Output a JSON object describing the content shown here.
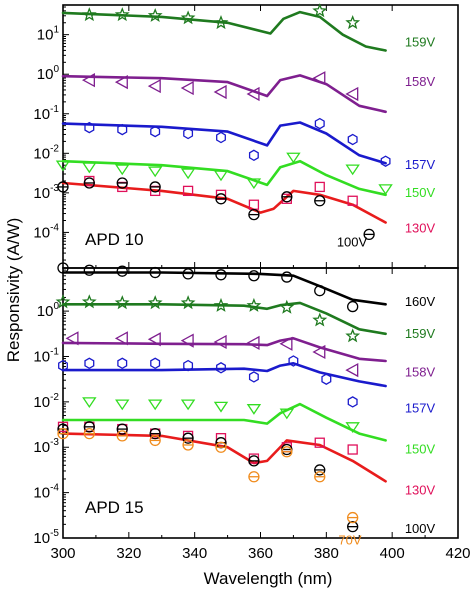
{
  "chart_data": {
    "type": "scatter",
    "shared_x": {
      "label": "Wavelength (nm)",
      "range": [
        300,
        420
      ],
      "ticks": [
        "300",
        "320",
        "340",
        "360",
        "380",
        "400",
        "420"
      ]
    },
    "ylabel": "Responsivity (A/W)",
    "yscale": "log",
    "panels": [
      {
        "title": "APD 10",
        "ylim_log10": [
          -4.9,
          1.75
        ],
        "ytick_labels": [
          {
            "base": "10",
            "exp": "1",
            "value": 1
          },
          {
            "base": "10",
            "exp": "0",
            "value": 0
          },
          {
            "base": "10",
            "exp": "-1",
            "value": -1
          },
          {
            "base": "10",
            "exp": "-2",
            "value": -2
          },
          {
            "base": "10",
            "exp": "-3",
            "value": -3
          },
          {
            "base": "10",
            "exp": "-4",
            "value": -4
          }
        ],
        "series": [
          {
            "name": "159V",
            "color": "#1f7a1f",
            "marker": "star",
            "label_log10": 0.8,
            "fit_x": [
              300,
              330,
              350,
              363,
              367,
              372,
              378,
              385,
              392,
              398
            ],
            "fit_log10": [
              1.55,
              1.45,
              1.3,
              1.03,
              1.4,
              1.57,
              1.45,
              1.0,
              0.7,
              0.6
            ],
            "points_x": [
              308,
              318,
              328,
              338,
              348,
              378,
              388
            ],
            "points_log10": [
              1.5,
              1.5,
              1.48,
              1.42,
              1.3,
              1.6,
              1.3
            ]
          },
          {
            "name": "158V",
            "color": "#7f1f8f",
            "marker": "tri-left",
            "label_log10": -0.2,
            "fit_x": [
              300,
              330,
              350,
              362,
              366,
              372,
              380,
              390,
              398
            ],
            "fit_log10": [
              -0.05,
              -0.1,
              -0.2,
              -0.55,
              -0.15,
              -0.03,
              -0.25,
              -0.8,
              -0.95
            ],
            "points_x": [
              308,
              318,
              328,
              338,
              348,
              358,
              378,
              388
            ],
            "points_log10": [
              -0.15,
              -0.2,
              -0.3,
              -0.35,
              -0.45,
              -0.5,
              -0.1,
              -0.5
            ]
          },
          {
            "name": "157V",
            "color": "#1a1acc",
            "marker": "hexagon",
            "label_log10": -2.3,
            "fit_x": [
              300,
              330,
              350,
              362,
              366,
              372,
              380,
              390,
              398
            ],
            "fit_log10": [
              -1.25,
              -1.33,
              -1.45,
              -1.8,
              -1.3,
              -1.22,
              -1.5,
              -2.05,
              -2.25
            ],
            "points_x": [
              308,
              318,
              328,
              338,
              348,
              358,
              378,
              388,
              398
            ],
            "points_log10": [
              -1.35,
              -1.4,
              -1.45,
              -1.5,
              -1.6,
              -2.05,
              -1.25,
              -1.65,
              -2.2
            ]
          },
          {
            "name": "150V",
            "color": "#33dd22",
            "marker": "tri-down",
            "label_log10": -3.0,
            "fit_x": [
              300,
              330,
              350,
              362,
              366,
              372,
              380,
              390,
              398
            ],
            "fit_log10": [
              -2.2,
              -2.3,
              -2.45,
              -2.8,
              -2.35,
              -2.2,
              -2.55,
              -2.9,
              -3.05
            ],
            "points_x": [
              300,
              308,
              318,
              328,
              338,
              348,
              358,
              370,
              388,
              398
            ],
            "points_log10": [
              -2.3,
              -2.35,
              -2.4,
              -2.45,
              -2.5,
              -2.55,
              -2.75,
              -2.1,
              -2.4,
              -2.9
            ]
          },
          {
            "name": "130V",
            "color": "#e0105a",
            "fit_color": "#e81c1c",
            "marker": "square",
            "label_log10": -3.9,
            "fit_x": [
              300,
              330,
              350,
              360,
              364,
              370,
              378,
              388,
              398
            ],
            "fit_log10": [
              -2.75,
              -2.95,
              -3.15,
              -3.5,
              -3.4,
              -2.95,
              -3.05,
              -3.3,
              -3.75
            ],
            "points_x": [
              308,
              318,
              328,
              338,
              348,
              358,
              368,
              378,
              388
            ],
            "points_log10": [
              -2.7,
              -2.85,
              -2.95,
              -2.95,
              -3.05,
              -3.3,
              -3.15,
              -2.85,
              -3.2
            ]
          },
          {
            "name": "100V",
            "color": "#000000",
            "marker": "circle-bar",
            "label_log10": -4.25,
            "fit_x": [],
            "fit_log10": [],
            "points_x": [
              300,
              308,
              318,
              328,
              348,
              358,
              368,
              378,
              393
            ],
            "points_log10": [
              -2.85,
              -2.75,
              -2.75,
              -2.85,
              -3.15,
              -3.55,
              -3.1,
              -3.2,
              -4.05
            ]
          }
        ]
      },
      {
        "title": "APD 15",
        "ylim_log10": [
          -5,
          0.95
        ],
        "ytick_labels": [
          {
            "base": "10",
            "exp": "0",
            "value": 0
          },
          {
            "base": "10",
            "exp": "-1",
            "value": -1
          },
          {
            "base": "10",
            "exp": "-2",
            "value": -2
          },
          {
            "base": "10",
            "exp": "-3",
            "value": -3
          },
          {
            "base": "10",
            "exp": "-4",
            "value": -4
          },
          {
            "base": "10",
            "exp": "-5",
            "value": -5
          }
        ],
        "series": [
          {
            "name": "160V",
            "color": "#000000",
            "marker": "circle",
            "label_log10": 0.2,
            "fit_x": [
              300,
              330,
              360,
              370,
              378,
              388,
              398
            ],
            "fit_log10": [
              0.85,
              0.85,
              0.82,
              0.78,
              0.55,
              0.25,
              0.15
            ],
            "points_x": [
              300,
              308,
              318,
              328,
              338,
              348,
              358,
              368,
              378,
              388
            ],
            "points_log10": [
              0.95,
              0.9,
              0.88,
              0.85,
              0.82,
              0.8,
              0.78,
              0.75,
              0.45,
              0.1
            ]
          },
          {
            "name": "159V",
            "color": "#1f7a1f",
            "marker": "star",
            "label_log10": -0.5,
            "fit_x": [
              300,
              330,
              355,
              362,
              366,
              372,
              380,
              390,
              398
            ],
            "fit_log10": [
              0.15,
              0.15,
              0.12,
              0.05,
              0.13,
              0.18,
              -0.05,
              -0.4,
              -0.5
            ],
            "points_x": [
              300,
              308,
              318,
              328,
              338,
              348,
              358,
              368,
              378,
              388
            ],
            "points_log10": [
              0.2,
              0.2,
              0.18,
              0.18,
              0.18,
              0.12,
              0.12,
              0.08,
              -0.2,
              -0.55
            ]
          },
          {
            "name": "158V",
            "color": "#7f1f8f",
            "marker": "tri-left",
            "label_log10": -1.35,
            "fit_x": [
              300,
              330,
              355,
              362,
              366,
              370,
              378,
              390,
              398
            ],
            "fit_log10": [
              -0.7,
              -0.72,
              -0.73,
              -0.75,
              -0.65,
              -0.6,
              -0.8,
              -1.05,
              -1.1
            ],
            "points_x": [
              303,
              318,
              328,
              338,
              348,
              358,
              368,
              378,
              388
            ],
            "points_log10": [
              -0.6,
              -0.6,
              -0.62,
              -0.65,
              -0.68,
              -0.7,
              -0.72,
              -0.9,
              -1.3
            ]
          },
          {
            "name": "157V",
            "color": "#1a1acc",
            "marker": "hexagon",
            "label_log10": -2.15,
            "fit_x": [
              300,
              330,
              355,
              362,
              366,
              370,
              378,
              390,
              398
            ],
            "fit_log10": [
              -1.3,
              -1.3,
              -1.27,
              -1.32,
              -1.2,
              -1.15,
              -1.35,
              -1.55,
              -1.65
            ],
            "points_x": [
              300,
              308,
              318,
              328,
              338,
              348,
              358,
              370,
              380,
              388
            ],
            "points_log10": [
              -1.2,
              -1.15,
              -1.15,
              -1.15,
              -1.2,
              -1.25,
              -1.45,
              -1.1,
              -1.5,
              -2.0
            ]
          },
          {
            "name": "150V",
            "color": "#33dd22",
            "marker": "tri-down",
            "label_log10": -3.05,
            "fit_x": [
              300,
              330,
              355,
              362,
              366,
              372,
              380,
              390,
              398
            ],
            "fit_log10": [
              -2.4,
              -2.4,
              -2.4,
              -2.48,
              -2.25,
              -2.05,
              -2.35,
              -2.7,
              -2.85
            ],
            "points_x": [
              308,
              318,
              328,
              338,
              348,
              358,
              368,
              388
            ],
            "points_log10": [
              -2.0,
              -2.05,
              -2.05,
              -2.05,
              -2.1,
              -2.15,
              -2.25,
              -2.55
            ]
          },
          {
            "name": "130V",
            "color": "#e0105a",
            "fit_color": "#e81c1c",
            "marker": "square",
            "label_log10": -3.95,
            "fit_x": [
              300,
              330,
              350,
              358,
              362,
              368,
              378,
              388,
              398
            ],
            "fit_log10": [
              -2.7,
              -2.75,
              -3.0,
              -3.35,
              -3.3,
              -2.85,
              -2.95,
              -3.3,
              -3.75
            ],
            "points_x": [
              300,
              308,
              318,
              328,
              338,
              348,
              358,
              368,
              378,
              388
            ],
            "points_log10": [
              -2.55,
              -2.55,
              -2.6,
              -2.7,
              -2.75,
              -2.8,
              -3.25,
              -3.0,
              -2.9,
              -3.05
            ]
          },
          {
            "name": "100V",
            "color": "#000000",
            "marker": "circle-bar",
            "label_log10": -4.8,
            "fit_x": [],
            "fit_log10": [],
            "points_x": [
              300,
              308,
              318,
              328,
              338,
              348,
              358,
              368,
              378,
              388
            ],
            "points_log10": [
              -2.6,
              -2.55,
              -2.6,
              -2.7,
              -2.8,
              -2.9,
              -3.3,
              -3.05,
              -3.5,
              -4.75
            ]
          },
          {
            "name": "70V",
            "color": "#f08c1e",
            "marker": "circle-bar",
            "label_log10": -5.05,
            "fit_x": [],
            "fit_log10": [],
            "points_x": [
              300,
              308,
              318,
              328,
              338,
              348,
              358,
              368,
              378,
              388
            ],
            "points_log10": [
              -2.7,
              -2.7,
              -2.75,
              -2.85,
              -2.95,
              -3.0,
              -3.65,
              -3.1,
              -3.65,
              -4.55
            ]
          }
        ]
      }
    ]
  }
}
